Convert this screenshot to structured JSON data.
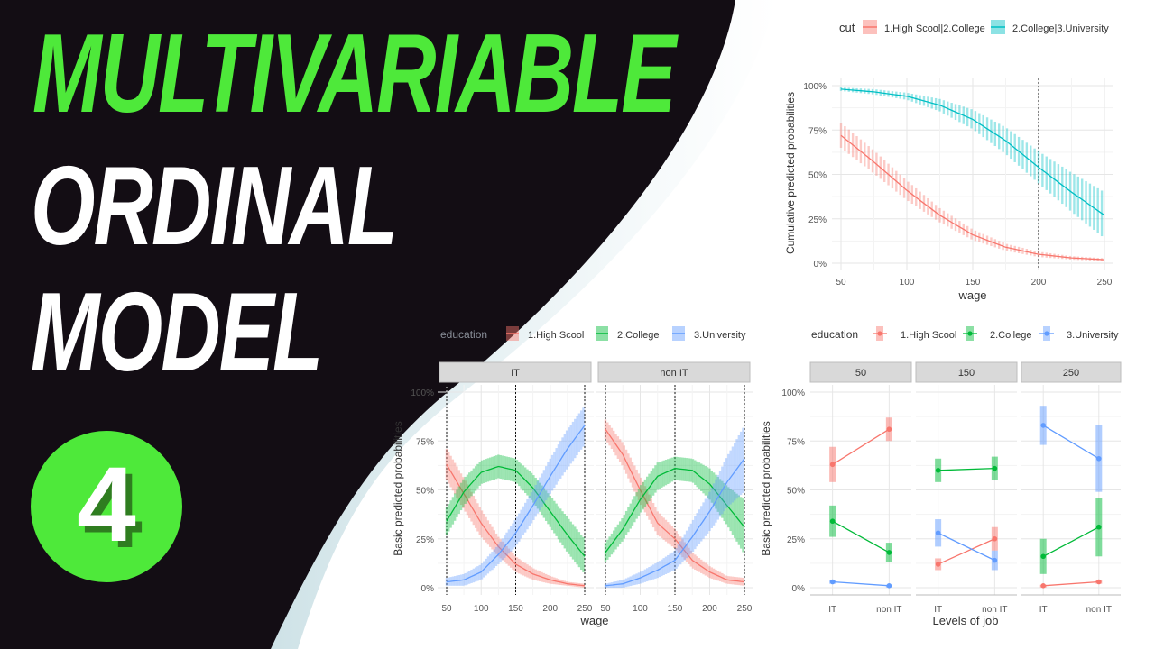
{
  "title": {
    "line1": "MULTIVARIABLE",
    "line2": "ORDINAL",
    "line3": "MODEL",
    "episode_number": "4"
  },
  "colors": {
    "title_green": "#4ee93a",
    "background_dark": "#130d14",
    "red": "#f8766d",
    "green": "#00ba38",
    "blue": "#619cff",
    "teal": "#00bfc4"
  },
  "chart_data": [
    {
      "type": "line",
      "title": "",
      "legend_position": "top",
      "legend_title": "cut",
      "xlabel": "wage",
      "ylabel": "Cumulative predicted probabilities",
      "xlim": [
        50,
        250
      ],
      "ylim": [
        0,
        1
      ],
      "x_ticks": [
        "50",
        "100",
        "150",
        "200",
        "250"
      ],
      "y_ticks": [
        "0%",
        "25%",
        "50%",
        "75%",
        "100%"
      ],
      "vline_x": 200,
      "x": [
        50,
        75,
        100,
        125,
        150,
        175,
        200,
        225,
        250
      ],
      "series": [
        {
          "name": "1.High Scool|2.College",
          "color": "#f8766d",
          "values": [
            0.72,
            0.57,
            0.41,
            0.27,
            0.16,
            0.09,
            0.05,
            0.03,
            0.02
          ],
          "ci_half": [
            0.07,
            0.065,
            0.055,
            0.04,
            0.03,
            0.02,
            0.015,
            0.01,
            0.008
          ]
        },
        {
          "name": "2.College|3.University",
          "color": "#00bfc4",
          "values": [
            0.98,
            0.965,
            0.94,
            0.89,
            0.81,
            0.69,
            0.54,
            0.4,
            0.27
          ],
          "ci_half": [
            0.01,
            0.015,
            0.02,
            0.035,
            0.055,
            0.075,
            0.09,
            0.11,
            0.13
          ]
        }
      ]
    },
    {
      "type": "line",
      "title": "",
      "legend_position": "top",
      "legend_title": "education",
      "xlabel": "wage",
      "ylabel": "Basic predicted probabilities",
      "xlim": [
        50,
        250
      ],
      "ylim": [
        0,
        1
      ],
      "x_ticks": [
        "50",
        "100",
        "150",
        "200",
        "250"
      ],
      "y_ticks": [
        "0%",
        "25%",
        "50%",
        "75%",
        "100%"
      ],
      "vlines_x": [
        50,
        150,
        250
      ],
      "x": [
        50,
        75,
        100,
        125,
        150,
        175,
        200,
        225,
        250
      ],
      "panels": [
        {
          "name": "IT",
          "series": [
            {
              "name": "1.High Scool",
              "color": "#f8766d",
              "values": [
                0.63,
                0.48,
                0.33,
                0.21,
                0.12,
                0.07,
                0.04,
                0.02,
                0.01
              ],
              "ci_half": [
                0.08,
                0.08,
                0.07,
                0.05,
                0.04,
                0.03,
                0.02,
                0.01,
                0.01
              ]
            },
            {
              "name": "2.College",
              "color": "#00ba38",
              "values": [
                0.34,
                0.49,
                0.59,
                0.62,
                0.6,
                0.51,
                0.39,
                0.27,
                0.16
              ],
              "ci_half": [
                0.07,
                0.07,
                0.06,
                0.06,
                0.06,
                0.07,
                0.08,
                0.09,
                0.09
              ]
            },
            {
              "name": "3.University",
              "color": "#619cff",
              "values": [
                0.03,
                0.04,
                0.08,
                0.17,
                0.28,
                0.42,
                0.57,
                0.71,
                0.83
              ],
              "ci_half": [
                0.02,
                0.03,
                0.04,
                0.05,
                0.07,
                0.08,
                0.09,
                0.1,
                0.1
              ]
            }
          ]
        },
        {
          "name": "non IT",
          "series": [
            {
              "name": "1.High Scool",
              "color": "#f8766d",
              "values": [
                0.81,
                0.68,
                0.5,
                0.33,
                0.25,
                0.14,
                0.08,
                0.04,
                0.03
              ],
              "ci_half": [
                0.05,
                0.06,
                0.07,
                0.06,
                0.05,
                0.04,
                0.03,
                0.02,
                0.02
              ]
            },
            {
              "name": "2.College",
              "color": "#00ba38",
              "values": [
                0.18,
                0.3,
                0.45,
                0.57,
                0.61,
                0.6,
                0.53,
                0.42,
                0.31
              ],
              "ci_half": [
                0.05,
                0.06,
                0.07,
                0.07,
                0.06,
                0.06,
                0.08,
                0.1,
                0.14
              ]
            },
            {
              "name": "3.University",
              "color": "#619cff",
              "values": [
                0.01,
                0.02,
                0.05,
                0.09,
                0.14,
                0.26,
                0.39,
                0.54,
                0.66
              ],
              "ci_half": [
                0.01,
                0.02,
                0.03,
                0.04,
                0.05,
                0.08,
                0.1,
                0.13,
                0.17
              ]
            }
          ]
        }
      ]
    },
    {
      "type": "scatter",
      "title": "",
      "legend_position": "top",
      "legend_title": "education",
      "xlabel": "Levels of job",
      "ylabel": "Basic predicted probabilities",
      "categories": [
        "IT",
        "non IT"
      ],
      "ylim": [
        0,
        1
      ],
      "y_ticks": [
        "0%",
        "25%",
        "50%",
        "75%",
        "100%"
      ],
      "panels": [
        {
          "name": "50",
          "series": [
            {
              "name": "1.High Scool",
              "color": "#f8766d",
              "values": [
                0.63,
                0.81
              ],
              "ci_half": [
                0.09,
                0.06
              ]
            },
            {
              "name": "2.College",
              "color": "#00ba38",
              "values": [
                0.34,
                0.18
              ],
              "ci_half": [
                0.08,
                0.05
              ]
            },
            {
              "name": "3.University",
              "color": "#619cff",
              "values": [
                0.03,
                0.01
              ],
              "ci_half": [
                0.01,
                0.005
              ]
            }
          ]
        },
        {
          "name": "150",
          "series": [
            {
              "name": "1.High Scool",
              "color": "#f8766d",
              "values": [
                0.12,
                0.25
              ],
              "ci_half": [
                0.03,
                0.06
              ]
            },
            {
              "name": "2.College",
              "color": "#00ba38",
              "values": [
                0.6,
                0.61
              ],
              "ci_half": [
                0.06,
                0.06
              ]
            },
            {
              "name": "3.University",
              "color": "#619cff",
              "values": [
                0.28,
                0.14
              ],
              "ci_half": [
                0.07,
                0.05
              ]
            }
          ]
        },
        {
          "name": "250",
          "series": [
            {
              "name": "1.High Scool",
              "color": "#f8766d",
              "values": [
                0.01,
                0.03
              ],
              "ci_half": [
                0.005,
                0.01
              ]
            },
            {
              "name": "2.College",
              "color": "#00ba38",
              "values": [
                0.16,
                0.31
              ],
              "ci_half": [
                0.09,
                0.15
              ]
            },
            {
              "name": "3.University",
              "color": "#619cff",
              "values": [
                0.83,
                0.66
              ],
              "ci_half": [
                0.1,
                0.17
              ]
            }
          ]
        }
      ]
    }
  ]
}
